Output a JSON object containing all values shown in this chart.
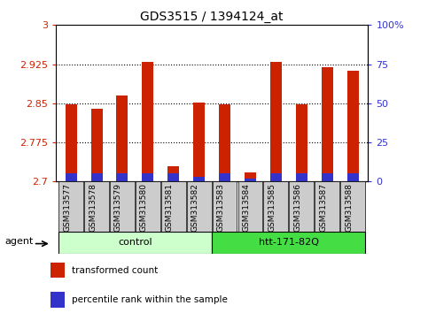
{
  "title": "GDS3515 / 1394124_at",
  "samples": [
    "GSM313577",
    "GSM313578",
    "GSM313579",
    "GSM313580",
    "GSM313581",
    "GSM313582",
    "GSM313583",
    "GSM313584",
    "GSM313585",
    "GSM313586",
    "GSM313587",
    "GSM313588"
  ],
  "transformed_count": [
    2.848,
    2.84,
    2.865,
    2.93,
    2.73,
    2.852,
    2.848,
    2.718,
    2.93,
    2.848,
    2.92,
    2.913
  ],
  "percentile_rank": [
    5,
    5,
    5,
    5,
    5,
    3,
    5,
    2,
    5,
    5,
    5,
    5
  ],
  "ylim_left": [
    2.7,
    3.0
  ],
  "ylim_right": [
    0,
    100
  ],
  "yticks_left": [
    2.7,
    2.775,
    2.85,
    2.925,
    3.0
  ],
  "yticks_right": [
    0,
    25,
    50,
    75,
    100
  ],
  "ytick_labels_left": [
    "2.7",
    "2.775",
    "2.85",
    "2.925",
    "3"
  ],
  "ytick_labels_right": [
    "0",
    "25",
    "50",
    "75",
    "100%"
  ],
  "red_color": "#cc2200",
  "blue_color": "#3333cc",
  "background_color": "#ffffff",
  "tick_bg_color": "#cccccc",
  "legend_red": "transformed count",
  "legend_blue": "percentile rank within the sample",
  "ctrl_color": "#ccffcc",
  "htt_color": "#44dd44",
  "agent_label": "agent"
}
